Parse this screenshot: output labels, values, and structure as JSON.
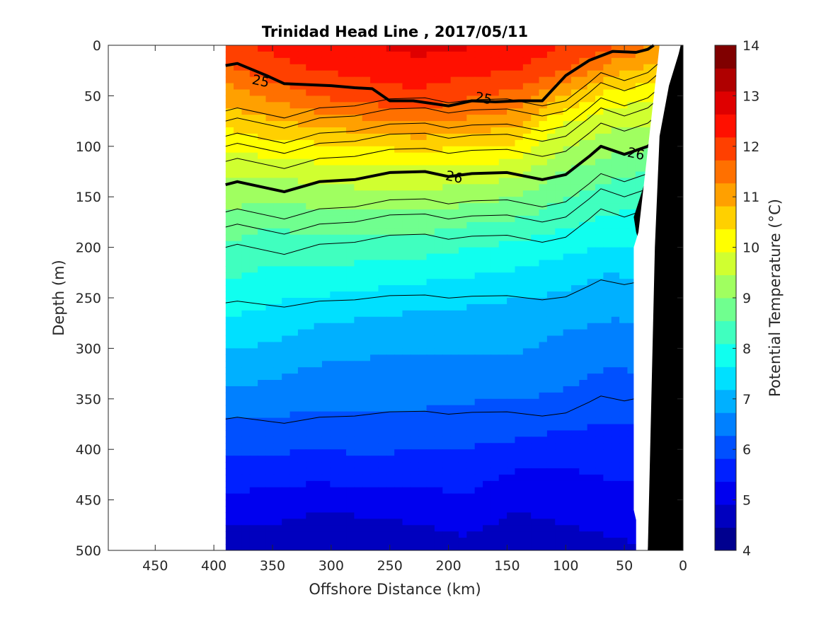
{
  "chart_data": {
    "type": "heatmap",
    "title": "Trinidad Head Line , 2017/05/11",
    "xlabel": "Offshore Distance (km)",
    "ylabel": "Depth (m)",
    "colorbar_label": "Potential Temperature (°C)",
    "xlim": [
      490,
      0
    ],
    "ylim": [
      0,
      500
    ],
    "x_reversed": true,
    "y_reversed": true,
    "x_ticks": [
      "450",
      "400",
      "350",
      "300",
      "250",
      "200",
      "150",
      "100",
      "50",
      "0"
    ],
    "y_ticks": [
      "0",
      "50",
      "100",
      "150",
      "200",
      "250",
      "300",
      "350",
      "400",
      "450",
      "500"
    ],
    "colorbar_ticks": [
      "4",
      "5",
      "6",
      "7",
      "8",
      "9",
      "10",
      "11",
      "12",
      "13",
      "14"
    ],
    "clim": [
      4,
      14
    ],
    "color_levels": [
      "#00008f",
      "#0000bf",
      "#0000ef",
      "#0020ff",
      "#0050ff",
      "#0080ff",
      "#00b0ff",
      "#00e0ff",
      "#10ffef",
      "#40ffbf",
      "#70ff8f",
      "#a0ff60",
      "#d0ff30",
      "#ffff00",
      "#ffd000",
      "#ffa000",
      "#ff7000",
      "#ff4000",
      "#ff1000",
      "#df0000",
      "#af0000",
      "#800000"
    ],
    "section_x_range_km": [
      390,
      20
    ],
    "temperature_rows": [
      {
        "depth": 0,
        "values": [
          12.0,
          12.3,
          12.5,
          12.6,
          12.8,
          12.7,
          12.5,
          12.2,
          11.8,
          11.2
        ]
      },
      {
        "depth": 25,
        "values": [
          11.6,
          12.0,
          12.2,
          12.3,
          12.4,
          12.3,
          12.2,
          11.8,
          11.0,
          10.6
        ]
      },
      {
        "depth": 50,
        "values": [
          11.0,
          11.4,
          11.8,
          12.0,
          12.1,
          11.8,
          11.6,
          10.8,
          10.2,
          10.0
        ]
      },
      {
        "depth": 75,
        "values": [
          10.5,
          10.8,
          11.0,
          11.2,
          11.4,
          11.2,
          11.0,
          10.0,
          9.6,
          9.5
        ]
      },
      {
        "depth": 100,
        "values": [
          10.0,
          10.2,
          10.3,
          10.4,
          10.5,
          10.4,
          10.3,
          9.5,
          9.2,
          9.0
        ]
      },
      {
        "depth": 125,
        "values": [
          9.5,
          9.6,
          9.7,
          9.8,
          9.8,
          9.8,
          9.6,
          9.0,
          8.7,
          8.5
        ]
      },
      {
        "depth": 150,
        "values": [
          9.2,
          9.1,
          9.2,
          9.3,
          9.3,
          9.2,
          9.0,
          8.6,
          8.3,
          8.2
        ]
      },
      {
        "depth": 175,
        "values": [
          8.8,
          8.6,
          8.8,
          8.8,
          8.8,
          8.6,
          8.5,
          8.2,
          8.0,
          7.9
        ]
      },
      {
        "depth": 200,
        "values": [
          8.5,
          8.3,
          8.4,
          8.3,
          8.3,
          8.1,
          8.0,
          7.8,
          7.6,
          7.6
        ]
      },
      {
        "depth": 225,
        "values": [
          8.2,
          8.0,
          8.0,
          7.9,
          7.8,
          7.7,
          7.6,
          7.4,
          7.2,
          7.3
        ]
      },
      {
        "depth": 250,
        "values": [
          7.9,
          7.7,
          7.6,
          7.5,
          7.4,
          7.3,
          7.2,
          7.1,
          6.9,
          7.0
        ]
      },
      {
        "depth": 275,
        "values": [
          7.6,
          7.4,
          7.2,
          7.1,
          7.0,
          7.0,
          6.9,
          6.8,
          6.7,
          6.7
        ]
      },
      {
        "depth": 300,
        "values": [
          7.2,
          7.1,
          6.9,
          6.8,
          6.8,
          6.8,
          6.8,
          6.6,
          6.5,
          6.5
        ]
      },
      {
        "depth": 325,
        "values": [
          6.9,
          6.8,
          6.6,
          6.6,
          6.6,
          6.6,
          6.6,
          6.4,
          6.2,
          6.3
        ]
      },
      {
        "depth": 350,
        "values": [
          6.6,
          6.5,
          6.4,
          6.4,
          6.4,
          6.3,
          6.3,
          6.2,
          6.0,
          6.0
        ]
      },
      {
        "depth": 375,
        "values": [
          6.2,
          6.2,
          6.1,
          6.2,
          6.1,
          6.1,
          6.0,
          5.9,
          5.8,
          5.8
        ]
      },
      {
        "depth": 400,
        "values": [
          5.9,
          5.9,
          5.8,
          5.9,
          5.8,
          5.8,
          5.7,
          5.6,
          5.5,
          5.6
        ]
      },
      {
        "depth": 425,
        "values": [
          5.6,
          5.5,
          5.5,
          5.6,
          5.5,
          5.6,
          5.3,
          5.3,
          5.4,
          5.4
        ]
      },
      {
        "depth": 450,
        "values": [
          5.3,
          5.2,
          5.1,
          5.2,
          5.2,
          5.3,
          5.0,
          5.1,
          5.2,
          5.3
        ]
      },
      {
        "depth": 475,
        "values": [
          4.9,
          4.9,
          4.7,
          4.8,
          4.9,
          5.0,
          4.8,
          4.9,
          5.0,
          5.1
        ]
      },
      {
        "depth": 500,
        "values": [
          4.6,
          4.6,
          4.5,
          4.5,
          4.7,
          4.8,
          4.6,
          4.7,
          4.8,
          4.9
        ]
      }
    ],
    "thick_contours": [
      {
        "label": "25",
        "points": [
          [
            390,
            20
          ],
          [
            380,
            18
          ],
          [
            355,
            30
          ],
          [
            340,
            38
          ],
          [
            300,
            40
          ],
          [
            280,
            42
          ],
          [
            265,
            43
          ],
          [
            250,
            55
          ],
          [
            230,
            55
          ],
          [
            200,
            60
          ],
          [
            180,
            55
          ],
          [
            160,
            56
          ],
          [
            140,
            55
          ],
          [
            120,
            55
          ],
          [
            100,
            30
          ],
          [
            80,
            15
          ],
          [
            60,
            6
          ],
          [
            40,
            7
          ],
          [
            30,
            4
          ],
          [
            25,
            0
          ]
        ]
      },
      {
        "label": "26",
        "points": [
          [
            390,
            138
          ],
          [
            380,
            135
          ],
          [
            340,
            145
          ],
          [
            310,
            135
          ],
          [
            280,
            133
          ],
          [
            250,
            126
          ],
          [
            220,
            125
          ],
          [
            200,
            130
          ],
          [
            180,
            127
          ],
          [
            150,
            126
          ],
          [
            120,
            133
          ],
          [
            100,
            128
          ],
          [
            80,
            110
          ],
          [
            70,
            100
          ],
          [
            50,
            108
          ],
          [
            30,
            100
          ],
          [
            20,
            90
          ]
        ]
      }
    ],
    "thin_contour_depths_at_offshore": [
      65,
      75,
      90,
      100,
      115,
      165,
      180,
      200,
      255,
      370
    ],
    "contour_labels": [
      {
        "text": "25",
        "x": 360,
        "depth": 35
      },
      {
        "text": "25",
        "x": 170,
        "depth": 52
      },
      {
        "text": "26",
        "x": 195,
        "depth": 130
      },
      {
        "text": "26",
        "x": 40,
        "depth": 107
      }
    ],
    "bottom_fill": "#000000"
  }
}
